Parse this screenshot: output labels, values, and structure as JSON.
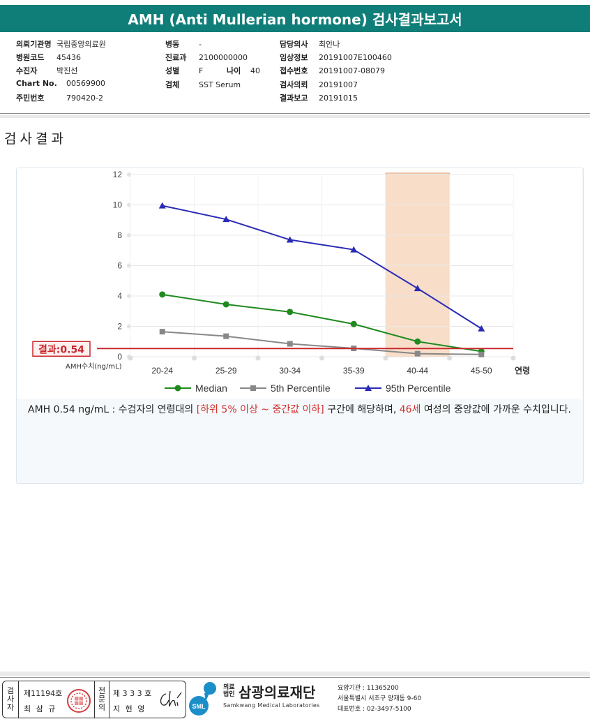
{
  "report_title": "AMH (Anti Mullerian hormone) 검사결과보고서",
  "info": {
    "col1": [
      {
        "label": "의뢰기관명",
        "value": "국립중앙의료원"
      },
      {
        "label": "병원코드",
        "value": "45436"
      },
      {
        "label": "수진자",
        "value": "박진선"
      },
      {
        "label": "Chart No.",
        "value": "00569900"
      },
      {
        "label": "주민번호",
        "value": "790420-2"
      }
    ],
    "col2": [
      {
        "label": "병동",
        "value": "-"
      },
      {
        "label": "진료과",
        "value": "2100000000"
      },
      {
        "label": "성별",
        "value": "F"
      },
      {
        "label": "검체",
        "value": "SST Serum"
      }
    ],
    "age": {
      "label": "나이",
      "value": "40"
    },
    "col3": [
      {
        "label": "담당의사",
        "value": "최안나"
      },
      {
        "label": "임상정보",
        "value": "20191007E100460"
      },
      {
        "label": "접수번호",
        "value": "20191007-08079"
      },
      {
        "label": "검사의뢰",
        "value": "20191007"
      },
      {
        "label": "결과보고",
        "value": "20191015"
      }
    ]
  },
  "section_title": "검사결과",
  "chart_data": {
    "type": "line",
    "categories": [
      "20-24",
      "25-29",
      "30-34",
      "35-39",
      "40-44",
      "45-50"
    ],
    "xlabel": "연령",
    "ylabel": "AMH수치(ng/mL)",
    "ylim": [
      0,
      12
    ],
    "yticks": [
      0,
      2,
      4,
      6,
      8,
      10,
      12
    ],
    "grid": true,
    "legend_position": "bottom",
    "series": [
      {
        "name": "Median",
        "values": [
          4.1,
          3.45,
          2.95,
          2.15,
          1.0,
          0.35
        ],
        "color": "#1f8a1f",
        "marker": "circle"
      },
      {
        "name": "5th Percentile",
        "values": [
          1.65,
          1.35,
          0.85,
          0.55,
          0.2,
          0.15
        ],
        "color": "#888888",
        "marker": "square"
      },
      {
        "name": "95th Percentile",
        "values": [
          9.95,
          9.05,
          7.7,
          7.05,
          4.5,
          1.85
        ],
        "color": "#2a2ab5",
        "marker": "triangle"
      }
    ],
    "result_line": {
      "value": 0.54,
      "label": "결과:0.54",
      "color": "#c8282d"
    },
    "highlight_category": "40-44",
    "highlight_color": "#f7d9c0"
  },
  "description": {
    "part1": "AMH  0.54 ng/mL : 수검자의 연령대의 ",
    "range": "[하위 5% 이상 ~ 중간값 이하]",
    "part2": " 구간에 해당하며, ",
    "age": "46세",
    "part3": " 여성의 중앙값에 가까운 수치입니다."
  },
  "footer": {
    "sign1_label_chars": [
      "검",
      "사",
      "자"
    ],
    "sign1_number": "제11194호",
    "sign1_name": "최 삼 규",
    "sign2_label_chars": [
      "전",
      "문",
      "의"
    ],
    "sign2_number": "제 3 3 3 호",
    "sign2_name": "지 현 영",
    "org_prefix_top": "의료",
    "org_prefix_bottom": "법인",
    "org_name": "삼광의료재단",
    "org_name_en": "Samkwang Medical Laboratories",
    "logo_text": "SML",
    "contact_lines": [
      "요양기관 : 11365200",
      "서울특별시 서초구 양재동 9-60",
      "대표번호 : 02-3497-5100"
    ]
  }
}
